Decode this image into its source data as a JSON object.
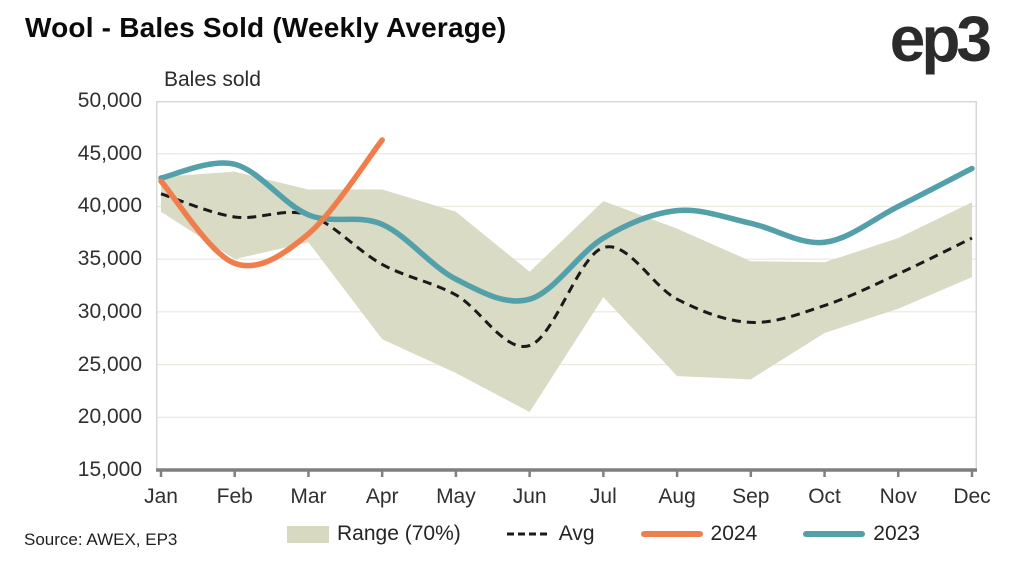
{
  "header": {
    "title": "Wool - Bales Sold (Weekly Average)",
    "logo_text": "ep3"
  },
  "footer": {
    "source": "Source: AWEX, EP3"
  },
  "legend": {
    "items": [
      {
        "label": "Range (70%)",
        "type": "band",
        "color": "#D8D9C1"
      },
      {
        "label": "Avg",
        "type": "dashed",
        "color": "#1A1A1A"
      },
      {
        "label": "2024",
        "type": "line",
        "color": "#EF7E4C"
      },
      {
        "label": "2023",
        "type": "line",
        "color": "#539FAA"
      }
    ]
  },
  "chart_data": {
    "type": "line",
    "title": "Wool - Bales Sold (Weekly Average)",
    "axis_label": "Bales sold",
    "xlabel": "",
    "ylabel": "Bales sold",
    "categories": [
      "Jan",
      "Feb",
      "Mar",
      "Apr",
      "May",
      "Jun",
      "Jul",
      "Aug",
      "Sep",
      "Oct",
      "Nov",
      "Dec"
    ],
    "ylim": [
      15000,
      50000
    ],
    "yticks": [
      15000,
      20000,
      25000,
      30000,
      35000,
      40000,
      45000,
      50000
    ],
    "grid": "horizontal",
    "legend_position": "bottom",
    "colors": {
      "grid": "#ECEBE2",
      "frame": "#D8D8D2",
      "axis": "#7F7F7F"
    },
    "band": {
      "name": "Range (70%)",
      "color": "#D8D9C1",
      "upper": [
        42800,
        43300,
        41600,
        41600,
        39500,
        33800,
        40500,
        37900,
        34800,
        34700,
        37000,
        40400
      ],
      "lower": [
        39500,
        35000,
        36600,
        27400,
        24200,
        20500,
        31400,
        23900,
        23600,
        28000,
        30300,
        33300
      ]
    },
    "series": [
      {
        "name": "Avg",
        "style": "dashed",
        "color": "#1A1A1A",
        "width": 3,
        "values": [
          41200,
          39000,
          39200,
          34500,
          31600,
          26800,
          36100,
          31200,
          29000,
          30600,
          33600,
          37000
        ]
      },
      {
        "name": "2023",
        "style": "solid",
        "color": "#539FAA",
        "width": 5.5,
        "values": [
          42700,
          44000,
          39200,
          38300,
          33100,
          31200,
          37000,
          39600,
          38400,
          36600,
          40000,
          43600
        ]
      },
      {
        "name": "2024",
        "style": "solid",
        "color": "#EF7E4C",
        "width": 5.5,
        "values": [
          42400,
          34600,
          37400,
          46300,
          null,
          null,
          null,
          null,
          null,
          null,
          null,
          null
        ]
      }
    ]
  }
}
